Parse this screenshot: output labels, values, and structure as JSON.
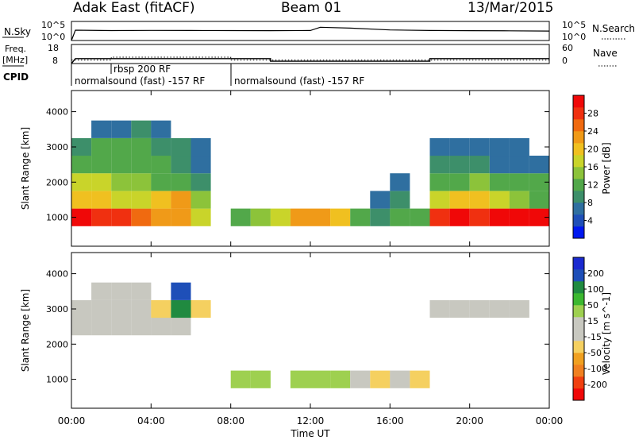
{
  "header": {
    "left_title": "Adak East (fitACF)",
    "center_title": "Beam 01",
    "right_title": "13/Mar/2015"
  },
  "panels": {
    "nsky": {
      "left_label": "N.Sky",
      "right_label": "N.Search",
      "left_ticks": [
        "10^5",
        "10^0"
      ],
      "right_ticks": [
        "10^5",
        "10^0"
      ]
    },
    "freq": {
      "left_label_1": "Freq.",
      "left_label_2": "[MHz]",
      "right_label": "Nave",
      "left_ticks": [
        "18",
        "8"
      ],
      "right_ticks": [
        "60",
        "0"
      ]
    },
    "cpid": {
      "label": "CPID",
      "modes": [
        "normalsound (fast) -157 RF",
        "rbsp 200 RF",
        "normalsound (fast) -157 RF"
      ]
    },
    "power": {
      "ylabel": "Slant Range [km]",
      "yticks": [
        "1000",
        "2000",
        "3000",
        "4000"
      ],
      "colorbar_label": "Power [dB]",
      "colorbar_ticks": [
        "4",
        "8",
        "12",
        "16",
        "20",
        "24",
        "28"
      ],
      "colors": [
        "#0018f0",
        "#1f4fb8",
        "#2f6fa0",
        "#3d8f6a",
        "#52a84a",
        "#8cc33a",
        "#c9d42a",
        "#f0c020",
        "#f09a18",
        "#f06a10",
        "#f03010",
        "#f00808"
      ]
    },
    "velocity": {
      "ylabel": "Slant Range [km]",
      "yticks": [
        "1000",
        "2000",
        "3000",
        "4000"
      ],
      "colorbar_label": "Velocity [m s^-1]",
      "colorbar_ticks": [
        "200",
        "100",
        "50",
        "15",
        "-15",
        "-50",
        "-100",
        "-200"
      ],
      "colors": [
        "#1a2ad0",
        "#1e4fb8",
        "#208a40",
        "#3cb830",
        "#9ed050",
        "#c8c8c0",
        "#c8c8c0",
        "#f5d060",
        "#f0a020",
        "#f08020",
        "#f04010",
        "#f00808"
      ]
    }
  },
  "xaxis": {
    "label": "Time UT",
    "ticks": [
      "00:00",
      "04:00",
      "08:00",
      "12:00",
      "16:00",
      "20:00",
      "00:00"
    ]
  },
  "chart_data": [
    {
      "type": "line",
      "title": "N.Sky / N.Search",
      "x_range": [
        0,
        24
      ],
      "y_scale": "log",
      "ylim": [
        1,
        100000
      ],
      "x": [
        0,
        0.2,
        2,
        4,
        6,
        8,
        10,
        12,
        12.5,
        13,
        14,
        16,
        18,
        20,
        22,
        24
      ],
      "y": [
        1,
        500,
        400,
        450,
        420,
        400,
        380,
        420,
        3000,
        2500,
        1800,
        600,
        420,
        380,
        350,
        300
      ]
    },
    {
      "type": "line",
      "title": "Freq. / Nave",
      "x_range": [
        0,
        24
      ],
      "series": [
        {
          "name": "Freq. [MHz]",
          "ylim": [
            8,
            18
          ],
          "x": [
            0,
            0.2,
            10,
            10,
            18,
            18,
            24
          ],
          "y": [
            8,
            10.6,
            10.6,
            9.2,
            9.2,
            10.6,
            10.6
          ]
        },
        {
          "name": "Nave",
          "ylim": [
            0,
            60
          ],
          "x": [
            0,
            2,
            2,
            8,
            8,
            24
          ],
          "y": [
            11,
            11,
            20,
            20,
            11,
            11
          ]
        }
      ]
    },
    {
      "type": "heatmap",
      "title": "Power [dB]",
      "xlabel": "Time UT",
      "ylabel": "Slant Range [km]",
      "x_range": [
        0,
        24
      ],
      "ylim": [
        180,
        4600
      ],
      "zlim": [
        0,
        30
      ],
      "x": [
        0.5,
        1.5,
        2.5,
        3.5,
        4.5,
        5.5,
        6.5,
        7.5,
        8.5,
        9.5,
        10.5,
        11.5,
        12.5,
        13.5,
        14.5,
        15.5,
        16.5,
        17.5,
        18.5,
        19.5,
        20.5,
        21.5,
        22.5,
        23.5
      ],
      "y": [
        1000,
        1500,
        2000,
        2500,
        3000,
        3500
      ],
      "z": [
        [
          28,
          27,
          26,
          24,
          22,
          20,
          16,
          0,
          10,
          14,
          16,
          20,
          22,
          18,
          10,
          8,
          10,
          12,
          26,
          28,
          27,
          28,
          29,
          29
        ],
        [
          18,
          18,
          17,
          16,
          18,
          20,
          14,
          0,
          0,
          0,
          0,
          0,
          0,
          0,
          0,
          6,
          8,
          0,
          16,
          18,
          18,
          16,
          14,
          12
        ],
        [
          16,
          16,
          14,
          14,
          12,
          10,
          8,
          0,
          0,
          0,
          0,
          0,
          0,
          0,
          0,
          0,
          6,
          0,
          10,
          12,
          14,
          12,
          10,
          10
        ],
        [
          12,
          12,
          12,
          10,
          10,
          8,
          6,
          0,
          0,
          0,
          0,
          0,
          0,
          0,
          0,
          0,
          0,
          0,
          8,
          8,
          8,
          6,
          6,
          6
        ],
        [
          8,
          10,
          10,
          10,
          8,
          8,
          6,
          0,
          0,
          0,
          0,
          0,
          0,
          0,
          0,
          0,
          0,
          0,
          6,
          6,
          6,
          6,
          6,
          0
        ],
        [
          0,
          6,
          6,
          8,
          6,
          0,
          0,
          0,
          0,
          0,
          0,
          0,
          0,
          0,
          0,
          0,
          0,
          0,
          0,
          0,
          0,
          0,
          0,
          0
        ]
      ]
    },
    {
      "type": "heatmap",
      "title": "Velocity [m s^-1]",
      "xlabel": "Time UT",
      "ylabel": "Slant Range [km]",
      "x_range": [
        0,
        24
      ],
      "ylim": [
        180,
        4600
      ],
      "zlim": [
        -200,
        200
      ],
      "x": [
        0.5,
        1.5,
        2.5,
        3.5,
        4.5,
        5.5,
        6.5,
        7.5,
        8.5,
        9.5,
        10.5,
        11.5,
        12.5,
        13.5,
        14.5,
        15.5,
        16.5,
        17.5,
        18.5,
        19.5,
        20.5,
        21.5,
        22.5,
        23.5
      ],
      "y": [
        1000,
        1500,
        2000,
        2500,
        3000,
        3500
      ],
      "z": [
        [
          0,
          0,
          0,
          0,
          0,
          0,
          0,
          0,
          40,
          50,
          0,
          60,
          60,
          40,
          -30,
          -40,
          -30,
          -40,
          0,
          0,
          0,
          0,
          0,
          0
        ],
        [
          0,
          0,
          0,
          0,
          0,
          0,
          0,
          0,
          0,
          0,
          0,
          0,
          0,
          0,
          0,
          0,
          0,
          0,
          0,
          0,
          0,
          0,
          0,
          0
        ],
        [
          0,
          0,
          0,
          0,
          0,
          0,
          0,
          0,
          0,
          0,
          0,
          0,
          0,
          0,
          0,
          0,
          0,
          0,
          0,
          0,
          0,
          0,
          0,
          0
        ],
        [
          -20,
          -20,
          -15,
          -15,
          -20,
          -30,
          0,
          0,
          0,
          0,
          0,
          0,
          0,
          0,
          0,
          0,
          0,
          0,
          0,
          0,
          0,
          0,
          0,
          0
        ],
        [
          -30,
          -30,
          -20,
          -20,
          -40,
          100,
          -60,
          0,
          0,
          0,
          0,
          0,
          0,
          0,
          0,
          0,
          0,
          0,
          -20,
          -20,
          -20,
          -20,
          -20,
          0
        ],
        [
          0,
          -30,
          -20,
          -20,
          0,
          150,
          0,
          0,
          0,
          0,
          0,
          0,
          0,
          0,
          0,
          0,
          0,
          0,
          0,
          0,
          0,
          0,
          0,
          0
        ]
      ]
    }
  ]
}
